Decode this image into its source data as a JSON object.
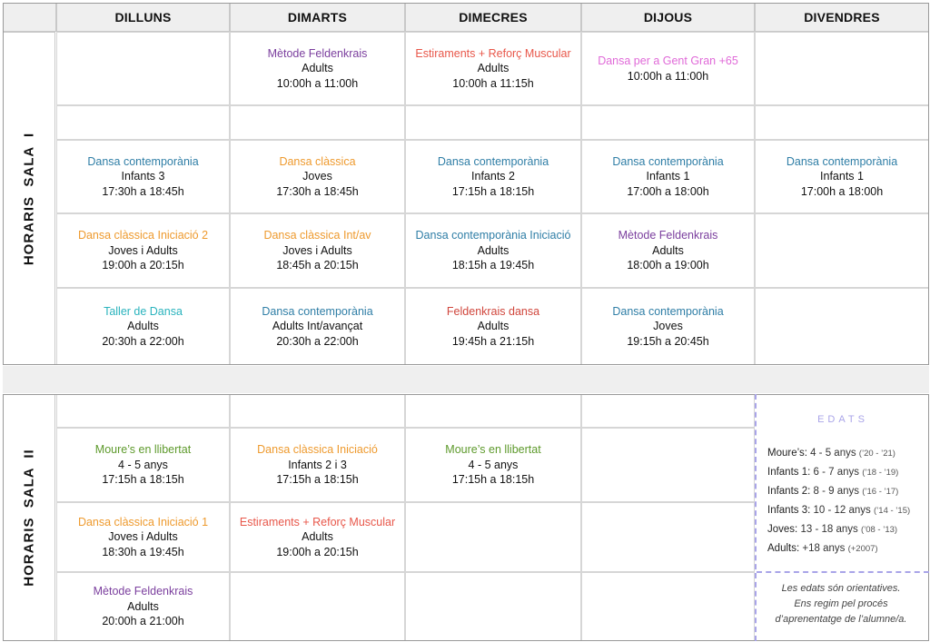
{
  "colors": {
    "purple": "#7b3f9e",
    "coral": "#e8574a",
    "pink": "#e06ad8",
    "blue": "#2f7ea6",
    "orange": "#ee9a2e",
    "teal": "#2ab3bd",
    "red": "#d0463c",
    "green": "#5e9a2c",
    "edats": "#a9a4e8"
  },
  "days": [
    "DILLUNS",
    "DIMARTS",
    "DIMECRES",
    "DIJOUS",
    "DIVENDRES"
  ],
  "sala1": {
    "label": "HORARIS  SALA  I",
    "rows": [
      [
        null,
        {
          "title": "Mètode Feldenkrais",
          "color": "purple",
          "lines": [
            "Adults",
            "10:00h a 11:00h"
          ]
        },
        {
          "title": "Estiraments + Reforç Muscular",
          "color": "coral",
          "lines": [
            "Adults",
            "10:00h a 11:15h"
          ]
        },
        {
          "title": "Dansa per a Gent Gran +65",
          "color": "pink",
          "lines": [
            "10:00h a 11:00h"
          ]
        },
        null
      ],
      [
        null,
        null,
        null,
        null,
        null
      ],
      [
        {
          "title": "Dansa contemporània",
          "color": "blue",
          "lines": [
            "Infants 3",
            "17:30h a 18:45h"
          ]
        },
        {
          "title": "Dansa clàssica",
          "color": "orange",
          "lines": [
            "Joves",
            "17:30h a 18:45h"
          ]
        },
        {
          "title": "Dansa contemporània",
          "color": "blue",
          "lines": [
            "Infants 2",
            "17:15h a 18:15h"
          ]
        },
        {
          "title": "Dansa contemporània",
          "color": "blue",
          "lines": [
            "Infants 1",
            "17:00h a 18:00h"
          ]
        },
        {
          "title": "Dansa contemporània",
          "color": "blue",
          "lines": [
            "Infants 1",
            "17:00h a 18:00h"
          ]
        }
      ],
      [
        {
          "title": "Dansa clàssica Iniciació 2",
          "color": "orange",
          "lines": [
            "Joves i Adults",
            "19:00h a 20:15h"
          ]
        },
        {
          "title": "Dansa clàssica Int/av",
          "color": "orange",
          "lines": [
            "Joves i Adults",
            "18:45h a 20:15h"
          ]
        },
        {
          "title": "Dansa contemporània Iniciació",
          "color": "blue",
          "lines": [
            "Adults",
            "18:15h a 19:45h"
          ]
        },
        {
          "title": "Mètode Feldenkrais",
          "color": "purple",
          "lines": [
            "Adults",
            "18:00h a 19:00h"
          ]
        },
        null
      ],
      [
        {
          "title": "Taller de Dansa",
          "color": "teal",
          "lines": [
            "Adults",
            "20:30h a 22:00h"
          ]
        },
        {
          "title": "Dansa contemporània",
          "color": "blue",
          "lines": [
            "Adults Int/avançat",
            "20:30h a 22:00h"
          ]
        },
        {
          "title": "Feldenkrais dansa",
          "color": "red",
          "lines": [
            "Adults",
            "19:45h a 21:15h"
          ]
        },
        {
          "title": "Dansa contemporània",
          "color": "blue",
          "lines": [
            "Joves",
            "19:15h a 20:45h"
          ]
        },
        null
      ]
    ]
  },
  "sala2": {
    "label": "HORARIS  SALA  II",
    "rows": [
      [
        null,
        null,
        null,
        null
      ],
      [
        {
          "title": "Moure’s en llibertat",
          "color": "green",
          "lines": [
            "4 - 5 anys",
            "17:15h a 18:15h"
          ]
        },
        {
          "title": "Dansa clàssica Iniciació",
          "color": "orange",
          "lines": [
            "Infants 2 i 3",
            "17:15h a 18:15h"
          ]
        },
        {
          "title": "Moure’s en llibertat",
          "color": "green",
          "lines": [
            "4 - 5 anys",
            "17:15h a 18:15h"
          ]
        },
        null
      ],
      [
        {
          "title": "Dansa clàssica Iniciació 1",
          "color": "orange",
          "lines": [
            "Joves i Adults",
            "18:30h a 19:45h"
          ]
        },
        {
          "title": "Estiraments + Reforç Muscular",
          "color": "coral",
          "lines": [
            "Adults",
            "19:00h a 20:15h"
          ]
        },
        null,
        null
      ],
      [
        {
          "title": "Mètode Feldenkrais",
          "color": "purple",
          "lines": [
            "Adults",
            "20:00h a 21:00h"
          ]
        },
        null,
        null,
        null
      ]
    ]
  },
  "edats": {
    "title": "EDATS",
    "items": [
      {
        "label": "Moure’s:",
        "range": "4 - 5 anys",
        "years": "(’20 - ’21)"
      },
      {
        "label": "Infants 1:",
        "range": "6 - 7 anys",
        "years": "(’18 - ’19)"
      },
      {
        "label": "Infants 2:",
        "range": "8 - 9 anys",
        "years": "(’16 - ’17)"
      },
      {
        "label": "Infants 3:",
        "range": "10 - 12 anys",
        "years": "(’14 - ’15)"
      },
      {
        "label": "Joves:",
        "range": "13 - 18 anys",
        "years": "(’08 - ’13)"
      },
      {
        "label": "Adults:",
        "range": "+18 anys",
        "years": "(+2007)"
      }
    ],
    "note": [
      "Les edats són orientatives.",
      "Ens regim pel procés",
      "d’aprenentatge de l’alumne/a."
    ]
  }
}
